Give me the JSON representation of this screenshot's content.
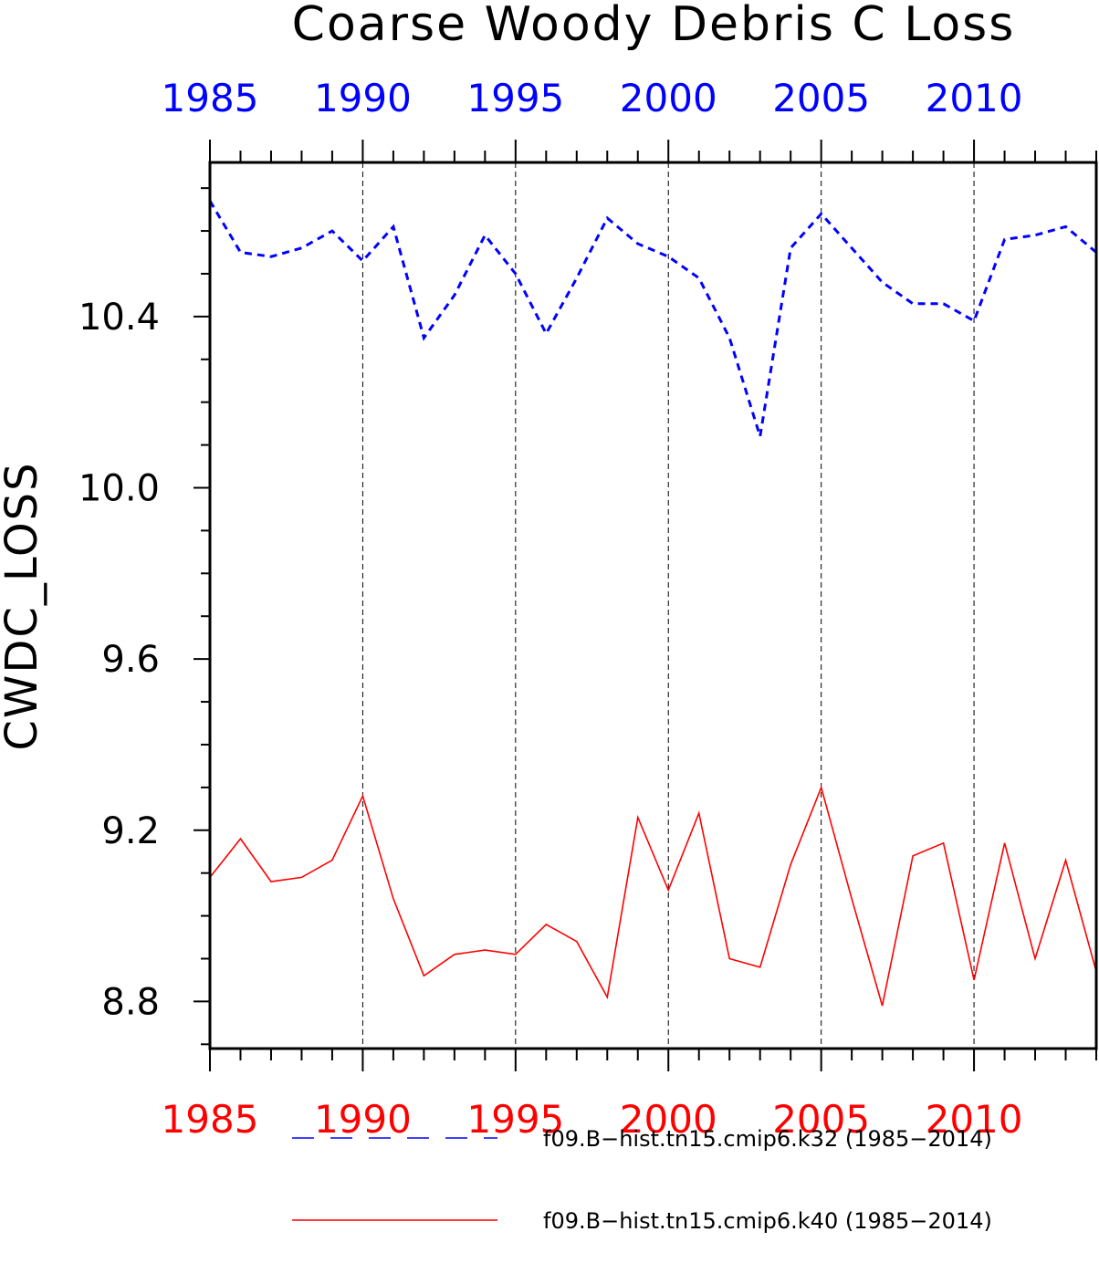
{
  "chart_data": {
    "type": "line",
    "title": "Coarse Woody Debris C Loss",
    "ylabel": "CWDC_LOSS",
    "xlabel": "",
    "xlim": [
      1985,
      2014
    ],
    "ylim": [
      8.69,
      10.76
    ],
    "x_ticks": [
      1985,
      1990,
      1995,
      2000,
      2005,
      2010
    ],
    "y_ticks": [
      8.8,
      9.2,
      9.6,
      10.0,
      10.4
    ],
    "y_tick_labels": [
      "8.8",
      "9.2",
      "9.6",
      "10.0",
      "10.4"
    ],
    "top_axis_color": "#0000ff",
    "bottom_axis_color": "#ff0000",
    "vertical_grid": true,
    "x": [
      1985,
      1986,
      1987,
      1988,
      1989,
      1990,
      1991,
      1992,
      1993,
      1994,
      1995,
      1996,
      1997,
      1998,
      1999,
      2000,
      2001,
      2002,
      2003,
      2004,
      2005,
      2006,
      2007,
      2008,
      2009,
      2010,
      2011,
      2012,
      2013,
      2014
    ],
    "series": [
      {
        "name": "f09.B−hist.tn15.cmip6.k32 (1985−2014)",
        "color": "#0000ff",
        "style": "dashed",
        "values": [
          10.67,
          10.55,
          10.54,
          10.56,
          10.6,
          10.53,
          10.61,
          10.35,
          10.45,
          10.59,
          10.5,
          10.36,
          10.49,
          10.63,
          10.57,
          10.54,
          10.49,
          10.35,
          10.12,
          10.56,
          10.64,
          10.56,
          10.48,
          10.43,
          10.43,
          10.39,
          10.58,
          10.59,
          10.61,
          10.55
        ]
      },
      {
        "name": "f09.B−hist.tn15.cmip6.k40 (1985−2014)",
        "color": "#ff0000",
        "style": "solid",
        "values": [
          9.09,
          9.18,
          9.08,
          9.09,
          9.13,
          9.28,
          9.04,
          8.86,
          8.91,
          8.92,
          8.91,
          8.98,
          8.94,
          8.81,
          9.23,
          9.06,
          9.24,
          8.9,
          8.88,
          9.12,
          9.3,
          9.04,
          8.79,
          9.14,
          9.17,
          8.85,
          9.17,
          8.9,
          9.13,
          8.87
        ]
      }
    ],
    "legend_position": "bottom"
  }
}
